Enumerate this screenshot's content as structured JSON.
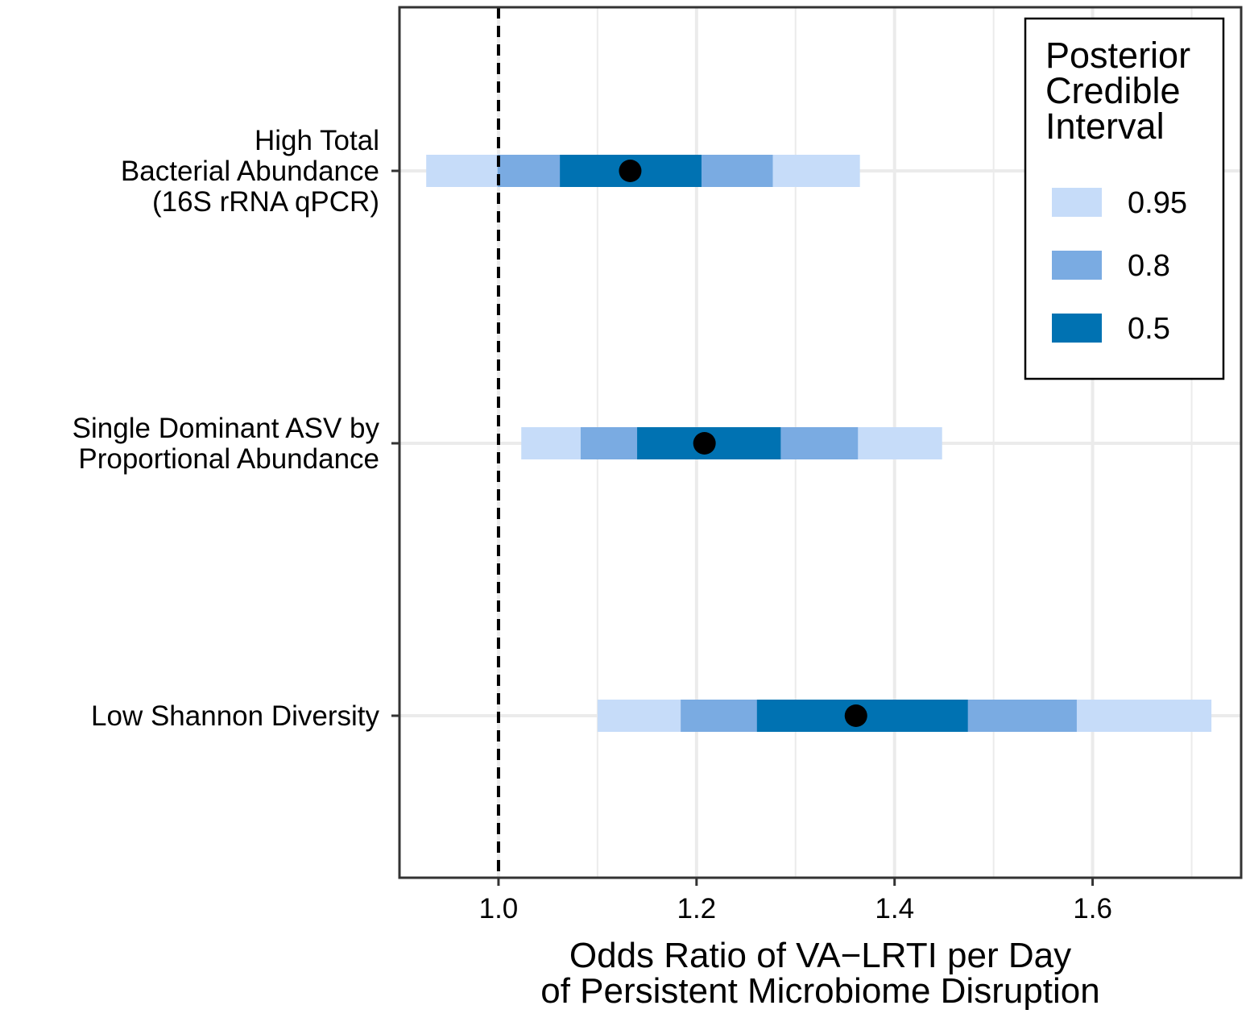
{
  "chart_data": {
    "type": "interval",
    "xlabel": [
      "Odds Ratio of VA−LRTI per Day",
      "of Persistent Microbiome Disruption"
    ],
    "ylabel": "",
    "xlim": [
      0.9,
      1.75
    ],
    "x_ticks": [
      1.0,
      1.2,
      1.4,
      1.6
    ],
    "x_tick_labels": [
      "1.0",
      "1.2",
      "1.4",
      "1.6"
    ],
    "reference_line": 1.0,
    "grid": true,
    "legend": {
      "title": [
        "Posterior",
        "Credible",
        "Interval"
      ],
      "position": "top-right",
      "entries": [
        {
          "label": "0.95",
          "color": "#c6dcf9"
        },
        {
          "label": "0.8",
          "color": "#7aabe2"
        },
        {
          "label": "0.5",
          "color": "#0072b2"
        }
      ]
    },
    "categories": [
      {
        "label": [
          "High Total",
          "Bacterial Abundance",
          "(16S rRNA qPCR)"
        ],
        "point": 1.133,
        "ci95": [
          0.927,
          1.365
        ],
        "ci80": [
          0.999,
          1.277
        ],
        "ci50": [
          1.062,
          1.205
        ]
      },
      {
        "label": [
          "Single Dominant ASV by",
          "Proportional Abundance"
        ],
        "point": 1.208,
        "ci95": [
          1.023,
          1.448
        ],
        "ci80": [
          1.083,
          1.363
        ],
        "ci50": [
          1.14,
          1.285
        ]
      },
      {
        "label": [
          "Low Shannon Diversity"
        ],
        "point": 1.361,
        "ci95": [
          1.1,
          1.72
        ],
        "ci80": [
          1.184,
          1.584
        ],
        "ci50": [
          1.261,
          1.474
        ]
      }
    ]
  }
}
